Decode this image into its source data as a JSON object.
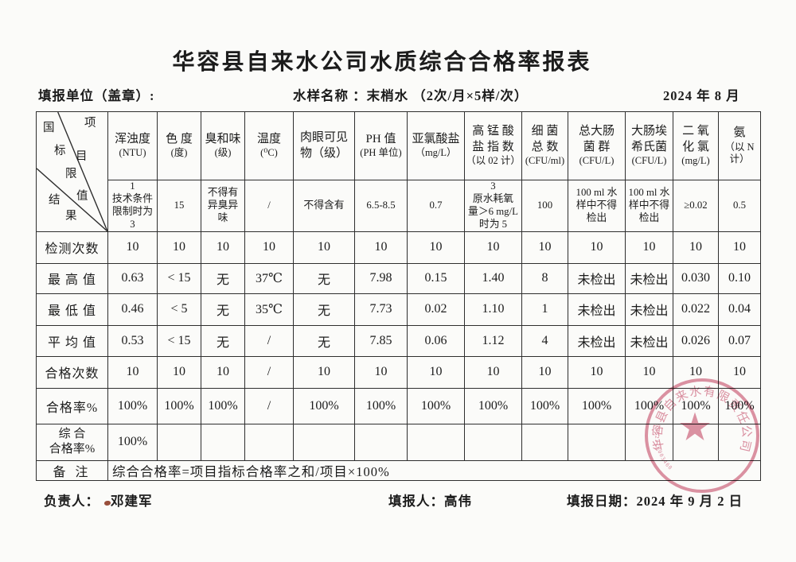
{
  "page": {
    "title": "华容县自来水公司水质综合合格率报表",
    "unit_label": "填报单位（盖章）:",
    "sample_label": "水样名称 ：末梢水 （2次/月×5样/次）",
    "period": "2024 年 8 月"
  },
  "corner": {
    "top_right": "项目",
    "middle": "国标限值",
    "bottom_left": "结果"
  },
  "table": {
    "columns": [
      {
        "name": "浑浊度",
        "unit": "(NTU)",
        "limit": "1\n技术条件\n限制时为 3"
      },
      {
        "name": "色 度",
        "unit": "(度)",
        "limit": "15"
      },
      {
        "name": "臭和味",
        "unit": "(级)",
        "limit": "不得有\n异臭异\n味"
      },
      {
        "name": "温度",
        "unit": "(⁰C)",
        "limit": "/"
      },
      {
        "name": "肉眼可见\n物（级）",
        "unit": "",
        "limit": "不得含有"
      },
      {
        "name": "PH 值",
        "unit": "(PH 单位)",
        "limit": "6.5-8.5"
      },
      {
        "name": "亚氯酸盐",
        "unit": "（mg/L）",
        "limit": "0.7"
      },
      {
        "name": "高 锰 酸\n盐 指 数",
        "unit": "（以 02 计）",
        "limit": "3\n原水耗氧\n量＞6 mg/L\n时为 5"
      },
      {
        "name": "细  菌\n总  数",
        "unit": "(CFU/ml)",
        "limit": "100"
      },
      {
        "name": "总大肠\n菌 群",
        "unit": "(CFU/L)",
        "limit": "100 ml 水\n样中不得\n检出"
      },
      {
        "name": "大肠埃\n希氏菌",
        "unit": "(CFU/L)",
        "limit": "100 ml 水\n样中不得\n检出"
      },
      {
        "name": "二 氧\n化 氯",
        "unit": "(mg/L)",
        "limit": "≥0.02"
      },
      {
        "name": "氨",
        "unit": "（以 N\n计）",
        "limit": "0.5"
      }
    ],
    "rows": [
      {
        "label": "检测次数",
        "values": [
          "10",
          "10",
          "10",
          "10",
          "10",
          "10",
          "10",
          "10",
          "10",
          "10",
          "10",
          "10",
          "10"
        ]
      },
      {
        "label": "最 高 值",
        "values": [
          "0.63",
          "< 15",
          "无",
          "37℃",
          "无",
          "7.98",
          "0.15",
          "1.40",
          "8",
          "未检出",
          "未检出",
          "0.030",
          "0.10"
        ]
      },
      {
        "label": "最 低 值",
        "values": [
          "0.46",
          "< 5",
          "无",
          "35℃",
          "无",
          "7.73",
          "0.02",
          "1.10",
          "1",
          "未检出",
          "未检出",
          "0.022",
          "0.04"
        ]
      },
      {
        "label": "平 均 值",
        "values": [
          "0.53",
          "< 15",
          "无",
          "/",
          "无",
          "7.85",
          "0.06",
          "1.12",
          "4",
          "未检出",
          "未检出",
          "0.026",
          "0.07"
        ]
      },
      {
        "label": "合格次数",
        "values": [
          "10",
          "10",
          "10",
          "/",
          "10",
          "10",
          "10",
          "10",
          "10",
          "10",
          "10",
          "10",
          "10"
        ]
      },
      {
        "label": "合格率%",
        "values": [
          "100%",
          "100%",
          "100%",
          "/",
          "100%",
          "100%",
          "100%",
          "100%",
          "100%",
          "100%",
          "100%",
          "100%",
          "100%"
        ]
      }
    ],
    "composite": {
      "label": "综  合\n合格率%",
      "value": "100%"
    },
    "remark": {
      "label": "备 注",
      "text": "综合合格率=项目指标合格率之和/项目×100%"
    }
  },
  "footer": {
    "responsible_label": "负责人：",
    "responsible_name": "邓建军",
    "filler_label": "填报人：",
    "filler_name": "高伟",
    "date_label": "填报日期：",
    "date_value": "2024 年 9 月  2 日"
  },
  "seal": {
    "company": "华容县自来水有限责任公司",
    "serial": "9062310003468",
    "color": "#c9506e"
  }
}
